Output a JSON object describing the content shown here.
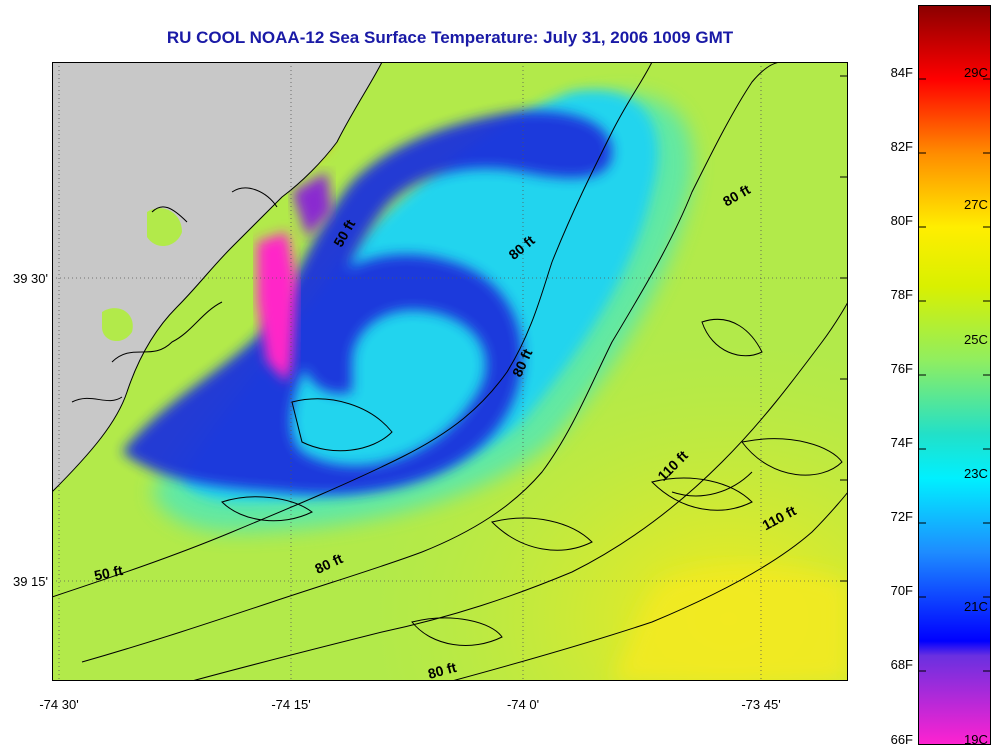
{
  "title": "RU COOL  NOAA-12  Sea Surface Temperature:  July 31, 2006 1009 GMT",
  "lon_labels": [
    "-74 30'",
    "-74 15'",
    "-74 0'",
    "-73 45'"
  ],
  "lat_labels": [
    "39 30'",
    "39 15'"
  ],
  "contour_labels": [
    "50 ft",
    "50 ft",
    "80 ft",
    "80 ft",
    "80 ft",
    "80 ft",
    "80 ft",
    "110 ft",
    "110 ft"
  ],
  "colorbar": {
    "fahrenheit_labels": [
      "84F",
      "82F",
      "80F",
      "78F",
      "76F",
      "74F",
      "72F",
      "70F",
      "68F",
      "66F"
    ],
    "celsius_labels": [
      "29C",
      "27C",
      "25C",
      "23C",
      "21C",
      "19C"
    ]
  },
  "colors": {
    "title": "#1a1aa6",
    "land": "#c8c8c8",
    "warm": "#f0e81e",
    "cool": "#1e32dc",
    "coldest": "#ff28c8"
  }
}
